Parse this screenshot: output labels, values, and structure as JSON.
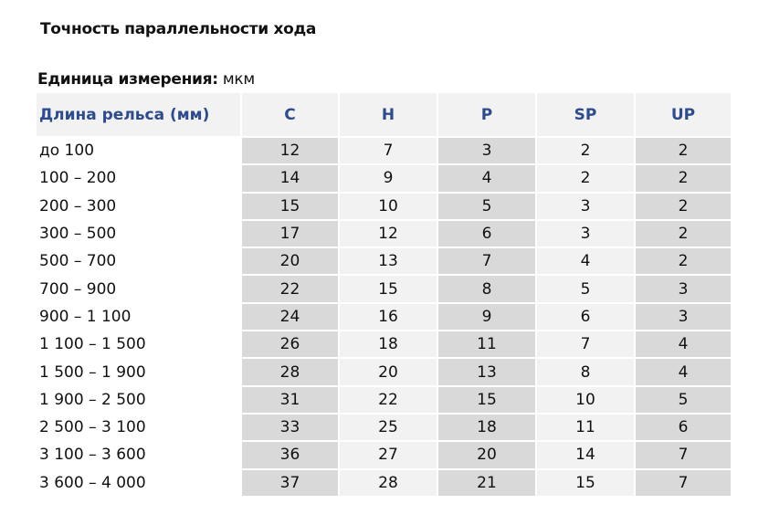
{
  "title": "Точность параллельности хода",
  "units": {
    "label": "Единица измерения:",
    "value": "мкм"
  },
  "table": {
    "headers": [
      "Длина рельса (мм)",
      "C",
      "H",
      "P",
      "SP",
      "UP"
    ],
    "rows": [
      [
        "до 100",
        "12",
        "7",
        "3",
        "2",
        "2"
      ],
      [
        "100 – 200",
        "14",
        "9",
        "4",
        "2",
        "2"
      ],
      [
        "200 – 300",
        "15",
        "10",
        "5",
        "3",
        "2"
      ],
      [
        "300 – 500",
        "17",
        "12",
        "6",
        "3",
        "2"
      ],
      [
        "500 – 700",
        "20",
        "13",
        "7",
        "4",
        "2"
      ],
      [
        "700 – 900",
        "22",
        "15",
        "8",
        "5",
        "3"
      ],
      [
        "900 – 1 100",
        "24",
        "16",
        "9",
        "6",
        "3"
      ],
      [
        "1 100 – 1 500",
        "26",
        "18",
        "11",
        "7",
        "4"
      ],
      [
        "1 500 – 1 900",
        "28",
        "20",
        "13",
        "8",
        "4"
      ],
      [
        "1 900 – 2 500",
        "31",
        "22",
        "15",
        "10",
        "5"
      ],
      [
        "2 500 – 3 100",
        "33",
        "25",
        "18",
        "11",
        "6"
      ],
      [
        "3 100 – 3 600",
        "36",
        "27",
        "20",
        "14",
        "7"
      ],
      [
        "3 600 – 4 000",
        "37",
        "28",
        "21",
        "15",
        "7"
      ]
    ]
  },
  "colors": {
    "header_text": "#2d4b8e",
    "shaded": "#d9d9d9",
    "light": "#f2f2f2"
  }
}
